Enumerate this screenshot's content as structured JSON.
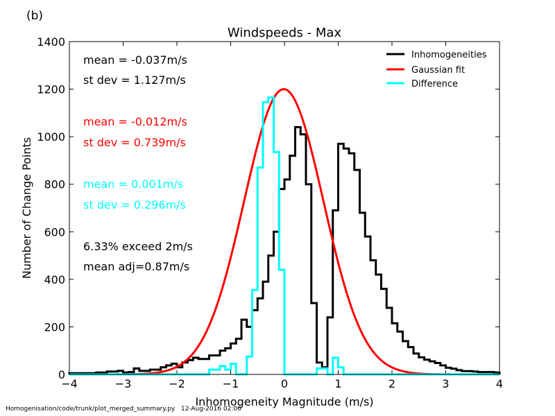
{
  "panel_label": "(b)",
  "footer": {
    "script": "Homogenisation/code/trunk/plot_merged_summary.py",
    "timestamp": "12-Aug-2016 02:06"
  },
  "colors": {
    "black": "#000000",
    "red": "#ff0000",
    "cyan": "#00ffff"
  },
  "chart_data": {
    "type": "line",
    "title": "Windspeeds - Max",
    "xlabel": "Inhomogeneity Magnitude (m/s)",
    "ylabel": "Number of Change Points",
    "xlim": [
      -4,
      4
    ],
    "ylim": [
      0,
      1400
    ],
    "xticks": [
      "−4",
      "−3",
      "−2",
      "−1",
      "0",
      "1",
      "2",
      "3",
      "4"
    ],
    "yticks": [
      "0",
      "200",
      "400",
      "600",
      "800",
      "1000",
      "1200",
      "1400"
    ],
    "grid": false,
    "legend_position": "top-right",
    "annotations": {
      "line1": "mean = -0.037m/s",
      "line2": "st dev =  1.127m/s",
      "line3": "mean = -0.012m/s",
      "line4": "st dev =  0.739m/s",
      "line5": "mean =  0.001m/s",
      "line6": "st dev =  0.296m/s",
      "line7": "6.33% exceed 2m/s",
      "line8": "mean adj=0.87m/s"
    },
    "bin_edges_start": -4.0,
    "bin_width": 0.1,
    "series": [
      {
        "name": "Inhomogeneities",
        "color": "#000000",
        "style": "step",
        "values": [
          5,
          5,
          5,
          5,
          5,
          8,
          8,
          12,
          12,
          15,
          8,
          10,
          25,
          15,
          15,
          20,
          20,
          30,
          38,
          45,
          30,
          50,
          60,
          70,
          65,
          65,
          80,
          80,
          100,
          110,
          130,
          150,
          230,
          200,
          270,
          320,
          390,
          500,
          600,
          780,
          820,
          920,
          1040,
          1010,
          800,
          300,
          50,
          30,
          240,
          690,
          970,
          950,
          930,
          860,
          680,
          580,
          480,
          420,
          360,
          280,
          215,
          180,
          140,
          115,
          88,
          72,
          62,
          55,
          48,
          38,
          28,
          24,
          18,
          14,
          14,
          12,
          10,
          10,
          10,
          8
        ]
      },
      {
        "name": "Gaussian fit",
        "color": "#ff0000",
        "style": "curve",
        "mean": -0.012,
        "sd": 0.739,
        "peak": 1200
      },
      {
        "name": "Difference",
        "color": "#00ffff",
        "style": "step",
        "values": [
          0,
          0,
          0,
          0,
          0,
          0,
          0,
          0,
          0,
          0,
          0,
          0,
          0,
          0,
          0,
          0,
          0,
          0,
          0,
          0,
          0,
          0,
          0,
          0,
          0,
          0,
          20,
          20,
          35,
          20,
          45,
          0,
          0,
          75,
          355,
          870,
          1145,
          1165,
          935,
          440,
          0,
          0,
          0,
          0,
          0,
          0,
          25,
          25,
          0,
          70,
          30,
          0,
          0,
          0,
          0,
          0,
          0,
          0,
          0,
          0,
          0,
          0,
          0,
          0,
          0,
          0,
          0,
          0,
          0,
          0,
          0,
          0,
          0,
          0,
          0,
          0,
          0,
          0,
          0,
          0
        ]
      }
    ]
  }
}
